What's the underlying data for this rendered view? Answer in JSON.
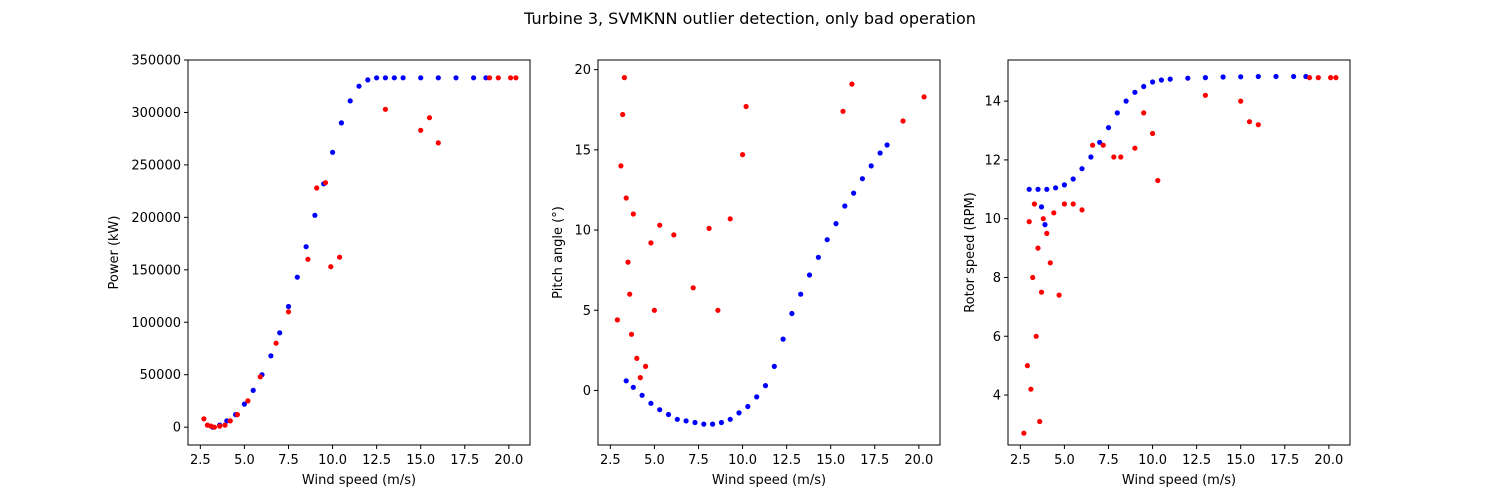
{
  "figure_title": "Turbine 3, SVMKNN outlier detection, only bad operation",
  "colors": {
    "normal": "#0000ff",
    "outlier": "#ff0000"
  },
  "chart_data": [
    {
      "type": "scatter",
      "xlabel": "Wind speed (m/s)",
      "ylabel": "Power (kW)",
      "xlim": [
        1.8,
        21.2
      ],
      "ylim": [
        -17000,
        350000
      ],
      "xticks": [
        2.5,
        5.0,
        7.5,
        10.0,
        12.5,
        15.0,
        17.5,
        20.0
      ],
      "xtick_labels": [
        "2.5",
        "5.0",
        "7.5",
        "10.0",
        "12.5",
        "15.0",
        "17.5",
        "20.0"
      ],
      "yticks": [
        0,
        50000,
        100000,
        150000,
        200000,
        250000,
        300000,
        350000
      ],
      "ytick_labels": [
        "0",
        "50000",
        "100000",
        "150000",
        "200000",
        "250000",
        "300000",
        "350000"
      ],
      "series": [
        {
          "color": "#0000ff",
          "x": [
            3.2,
            3.6,
            4.0,
            4.5,
            5.0,
            5.5,
            6.0,
            6.5,
            7.0,
            7.5,
            8.0,
            8.5,
            9.0,
            9.5,
            10.0,
            10.5,
            11.0,
            11.5,
            12.0,
            12.5,
            13.0,
            13.5,
            14.0,
            15.0,
            16.0,
            17.0,
            18.0,
            18.7
          ],
          "y": [
            0,
            2000,
            6000,
            12000,
            22000,
            35000,
            50000,
            68000,
            90000,
            115000,
            143000,
            172000,
            202000,
            232000,
            262000,
            290000,
            311000,
            325000,
            331000,
            333000,
            333000,
            333000,
            333000,
            333000,
            333000,
            333000,
            333000,
            333000
          ]
        },
        {
          "color": "#ff0000",
          "x": [
            2.7,
            2.9,
            3.1,
            3.3,
            3.6,
            3.9,
            4.2,
            4.6,
            5.2,
            5.9,
            6.8,
            7.5,
            8.6,
            9.1,
            9.6,
            9.9,
            10.4,
            13.0,
            15.0,
            15.5,
            16.0,
            18.9,
            19.4,
            20.1,
            20.4
          ],
          "y": [
            8000,
            2000,
            1000,
            0,
            1000,
            2000,
            6000,
            12000,
            25000,
            48000,
            80000,
            110000,
            160000,
            228000,
            233000,
            153000,
            162000,
            303000,
            283000,
            295000,
            271000,
            333000,
            333000,
            333000,
            333000
          ]
        }
      ]
    },
    {
      "type": "scatter",
      "xlabel": "Wind speed (m/s)",
      "ylabel": "Pitch angle (°)",
      "xlim": [
        1.8,
        21.2
      ],
      "ylim": [
        -3.4,
        20.6
      ],
      "xticks": [
        2.5,
        5.0,
        7.5,
        10.0,
        12.5,
        15.0,
        17.5,
        20.0
      ],
      "xtick_labels": [
        "2.5",
        "5.0",
        "7.5",
        "10.0",
        "12.5",
        "15.0",
        "17.5",
        "20.0"
      ],
      "yticks": [
        0,
        5,
        10,
        15,
        20
      ],
      "ytick_labels": [
        "0",
        "5",
        "10",
        "15",
        "20"
      ],
      "series": [
        {
          "color": "#0000ff",
          "x": [
            3.4,
            3.8,
            4.3,
            4.8,
            5.3,
            5.8,
            6.3,
            6.8,
            7.3,
            7.8,
            8.3,
            8.8,
            9.3,
            9.8,
            10.3,
            10.8,
            11.3,
            11.8,
            12.3,
            12.8,
            13.3,
            13.8,
            14.3,
            14.8,
            15.3,
            15.8,
            16.3,
            16.8,
            17.3,
            17.8,
            18.2
          ],
          "y": [
            0.6,
            0.2,
            -0.3,
            -0.8,
            -1.2,
            -1.5,
            -1.8,
            -1.9,
            -2.0,
            -2.1,
            -2.1,
            -2.0,
            -1.8,
            -1.4,
            -1.0,
            -0.4,
            0.3,
            1.5,
            3.2,
            4.8,
            6.0,
            7.2,
            8.3,
            9.4,
            10.4,
            11.5,
            12.3,
            13.2,
            14.0,
            14.8,
            15.3
          ]
        },
        {
          "color": "#ff0000",
          "x": [
            2.9,
            3.1,
            3.2,
            3.3,
            3.4,
            3.5,
            3.6,
            3.7,
            3.8,
            4.0,
            4.2,
            4.5,
            4.8,
            5.0,
            5.3,
            6.1,
            7.2,
            8.1,
            8.6,
            9.3,
            10.0,
            10.2,
            15.7,
            16.2,
            19.1,
            20.3
          ],
          "y": [
            4.4,
            14.0,
            17.2,
            19.5,
            12.0,
            8.0,
            6.0,
            3.5,
            11.0,
            2.0,
            0.8,
            1.5,
            9.2,
            5.0,
            10.3,
            9.7,
            6.4,
            10.1,
            5.0,
            10.7,
            14.7,
            17.7,
            17.4,
            19.1,
            16.8,
            18.3
          ]
        }
      ]
    },
    {
      "type": "scatter",
      "xlabel": "Wind speed (m/s)",
      "ylabel": "Rotor speed (RPM)",
      "xlim": [
        1.8,
        21.2
      ],
      "ylim": [
        2.3,
        15.4
      ],
      "xticks": [
        2.5,
        5.0,
        7.5,
        10.0,
        12.5,
        15.0,
        17.5,
        20.0
      ],
      "xtick_labels": [
        "2.5",
        "5.0",
        "7.5",
        "10.0",
        "12.5",
        "15.0",
        "17.5",
        "20.0"
      ],
      "yticks": [
        4,
        6,
        8,
        10,
        12,
        14
      ],
      "ytick_labels": [
        "4",
        "6",
        "8",
        "10",
        "12",
        "14"
      ],
      "series": [
        {
          "color": "#0000ff",
          "x": [
            3.0,
            3.5,
            4.0,
            4.5,
            5.0,
            5.5,
            6.0,
            6.5,
            7.0,
            7.5,
            8.0,
            8.5,
            9.0,
            9.5,
            10.0,
            10.5,
            11.0,
            12.0,
            13.0,
            14.0,
            15.0,
            16.0,
            17.0,
            18.0,
            18.7,
            3.7,
            3.9
          ],
          "y": [
            11.0,
            11.0,
            11.0,
            11.05,
            11.15,
            11.35,
            11.7,
            12.1,
            12.6,
            13.1,
            13.6,
            14.0,
            14.3,
            14.5,
            14.65,
            14.72,
            14.75,
            14.78,
            14.8,
            14.82,
            14.83,
            14.84,
            14.84,
            14.84,
            14.84,
            10.4,
            9.8
          ]
        },
        {
          "color": "#ff0000",
          "x": [
            2.7,
            2.9,
            3.0,
            3.1,
            3.2,
            3.3,
            3.4,
            3.5,
            3.6,
            3.7,
            3.8,
            4.0,
            4.2,
            4.4,
            4.7,
            5.0,
            5.5,
            6.0,
            6.6,
            7.2,
            7.8,
            8.2,
            9.0,
            9.5,
            10.0,
            10.3,
            13.0,
            15.0,
            15.5,
            16.0,
            18.9,
            19.4,
            20.1,
            20.4
          ],
          "y": [
            2.7,
            5.0,
            9.9,
            4.2,
            8.0,
            10.5,
            6.0,
            9.0,
            3.1,
            7.5,
            10.0,
            9.5,
            8.5,
            10.2,
            7.4,
            10.5,
            10.5,
            10.3,
            12.5,
            12.5,
            12.1,
            12.1,
            12.4,
            13.6,
            12.9,
            11.3,
            14.2,
            14.0,
            13.3,
            13.2,
            14.8,
            14.8,
            14.8,
            14.8
          ]
        }
      ]
    }
  ]
}
